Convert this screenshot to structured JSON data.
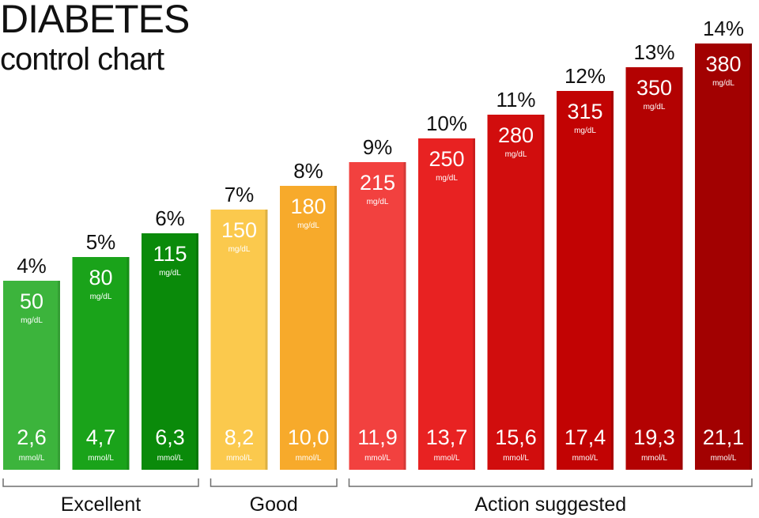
{
  "header": {
    "title": "DIABETES",
    "subtitle": "control chart"
  },
  "chart_data": {
    "type": "bar",
    "title": "DIABETES",
    "subtitle": "control chart",
    "xlabel": "",
    "ylabel": "",
    "grid": false,
    "units": {
      "glucose": "mg/dL",
      "mmol": "mmol/L"
    },
    "categories": [
      "4%",
      "5%",
      "6%",
      "7%",
      "8%",
      "9%",
      "10%",
      "11%",
      "12%",
      "13%",
      "14%"
    ],
    "series": [
      {
        "values": [
          50,
          80,
          115,
          150,
          180,
          215,
          250,
          280,
          315,
          350,
          380
        ]
      },
      {
        "values": [
          "2,6",
          "4,7",
          "6,3",
          "8,2",
          "10,0",
          "11,9",
          "13,7",
          "15,6",
          "17,4",
          "19,3",
          "21,1"
        ]
      }
    ],
    "bar_colors": [
      "#3cb43c",
      "#1aa31a",
      "#0a8a0a",
      "#fbc94d",
      "#f7aa2b",
      "#f2413f",
      "#e82222",
      "#d10d0d",
      "#c20303",
      "#b30202",
      "#a20101"
    ],
    "groups": [
      {
        "label": "Excellent",
        "start": 0,
        "end": 2
      },
      {
        "label": "Good",
        "start": 3,
        "end": 4
      },
      {
        "label": "Action suggested",
        "start": 5,
        "end": 10
      }
    ]
  }
}
